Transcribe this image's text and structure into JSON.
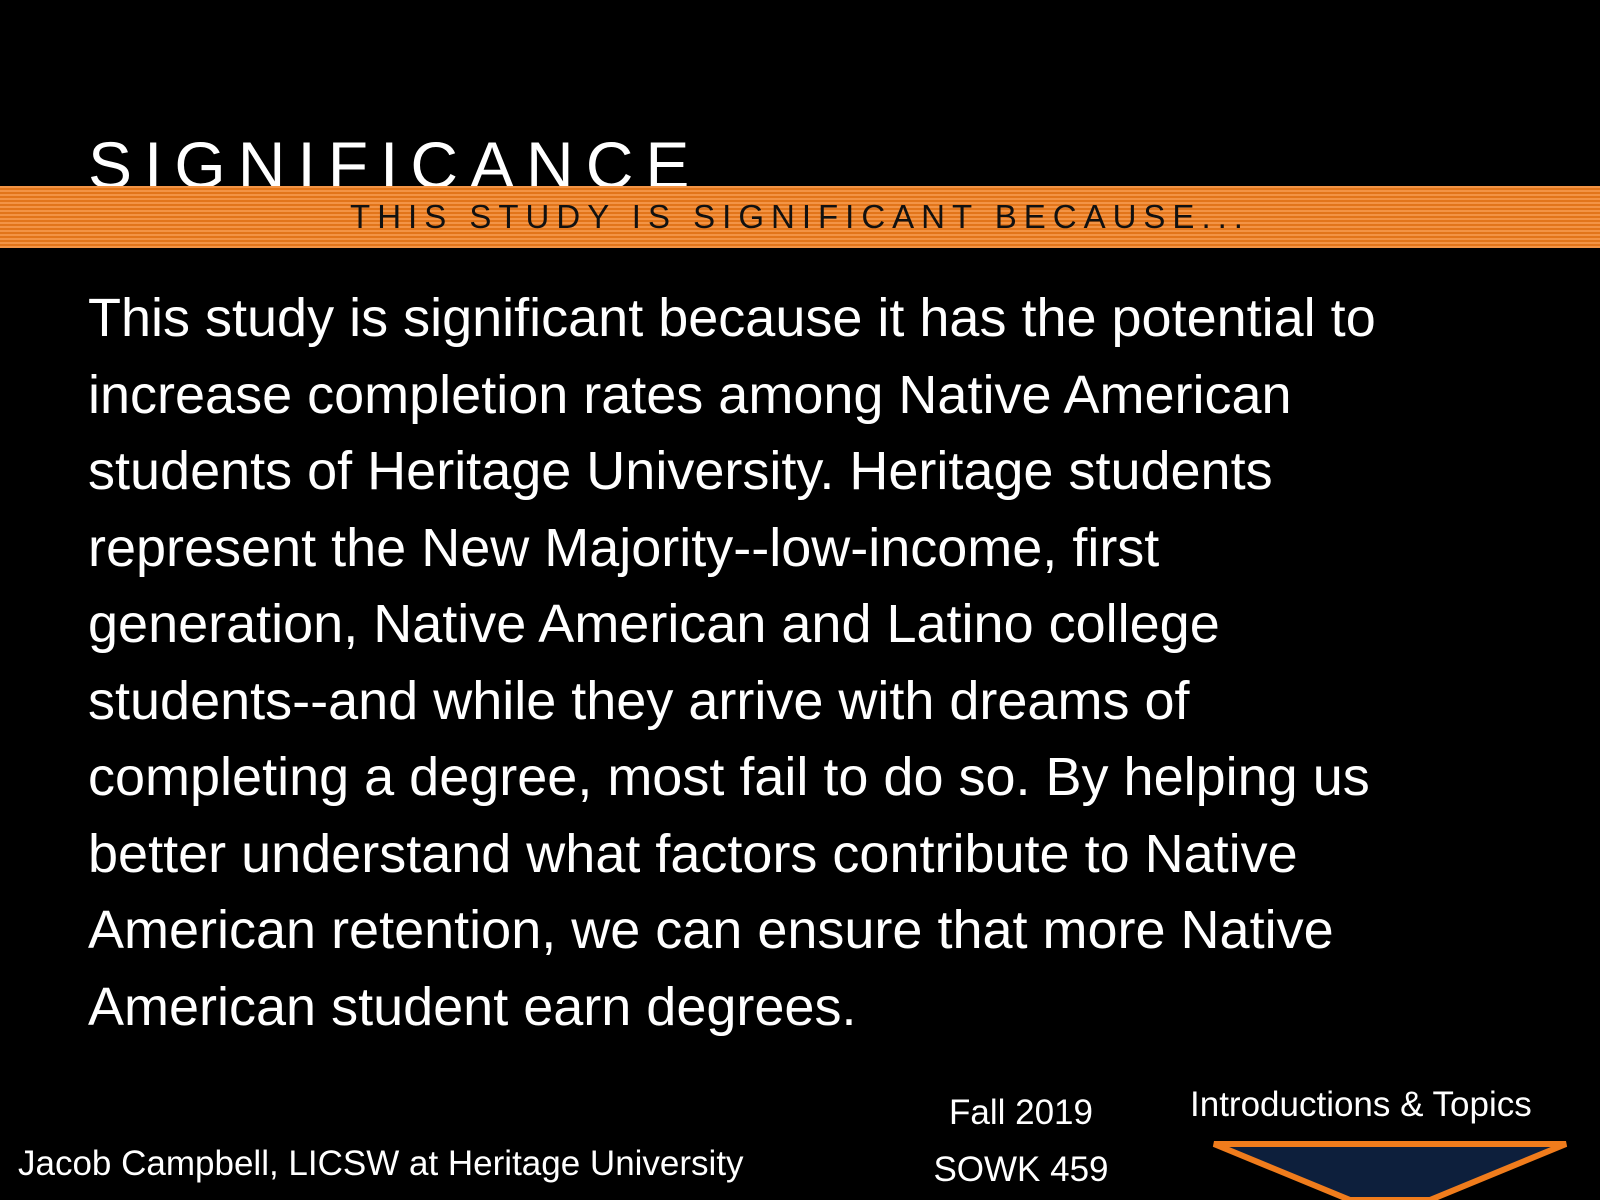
{
  "slide": {
    "title": "SIGNIFICANCE",
    "subtitle": "THIS STUDY IS SIGNIFICANT BECAUSE...",
    "body_lines": [
      "This study is significant because it has the potential to",
      "increase completion rates among Native American",
      "students of Heritage University. Heritage students",
      "represent the New Majority--low-income, first",
      "generation, Native American and Latino college",
      "students--and while they arrive with dreams of",
      "completing a degree, most fail to do so. By helping us",
      "better understand what factors contribute to Native",
      "American retention, we can ensure that more Native",
      "American student earn degrees."
    ]
  },
  "footer": {
    "author": "Jacob Campbell, LICSW at Heritage University",
    "term": "Fall 2019",
    "course": "SOWK 459",
    "section": "Introductions & Topics"
  },
  "colors": {
    "background": "#000000",
    "accent_band": "#f07c1c",
    "triangle_fill": "#0d1f3c",
    "triangle_border": "#f07c1c"
  },
  "icons": {
    "footer_shape": "triangle-icon"
  }
}
